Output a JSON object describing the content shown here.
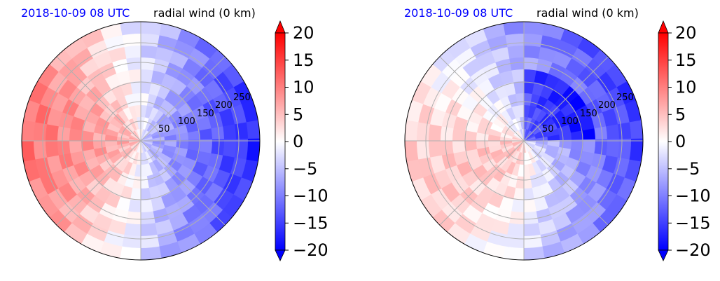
{
  "chart_data": [
    {
      "type": "heatmap",
      "projection": "polar",
      "time_label": "2018-10-09 08 UTC",
      "time_label_color": "#0000ff",
      "title": "radial wind (0 km)",
      "radial_ticks": [
        "50",
        "100",
        "150",
        "200",
        "250"
      ],
      "colorbar": {
        "ticks": [
          "20",
          "15",
          "10",
          "5",
          "0",
          "−5",
          "−10",
          "−15",
          "−20"
        ],
        "vmin": -20,
        "vmax": 20,
        "colormap": "bwr",
        "extend": "both",
        "colors": {
          "min": "#0000ff",
          "mid": "#ffffff",
          "max": "#ff0000"
        }
      },
      "field_description": "inflow (negative, blue) on east side, outflow (positive, red) on west side",
      "field": {
        "ew": 9,
        "ns": 0,
        "noise": 2,
        "bias": -3
      }
    },
    {
      "type": "heatmap",
      "projection": "polar",
      "time_label": "2018-10-09 08 UTC",
      "time_label_color": "#0000ff",
      "title": "radial wind (0 km)",
      "radial_ticks": [
        "50",
        "100",
        "150",
        "200",
        "250"
      ],
      "colorbar": {
        "ticks": [
          "20",
          "15",
          "10",
          "5",
          "0",
          "−5",
          "−10",
          "−15",
          "−20"
        ],
        "vmin": -20,
        "vmax": 20,
        "colormap": "bwr",
        "extend": "both",
        "colors": {
          "min": "#0000ff",
          "mid": "#ffffff",
          "max": "#ff0000"
        }
      },
      "field_description": "mostly weak inflow with strong inflow in north-east quadrant",
      "field": {
        "ew": 6,
        "ns": -3,
        "noise": 2,
        "bias": -6
      }
    }
  ]
}
